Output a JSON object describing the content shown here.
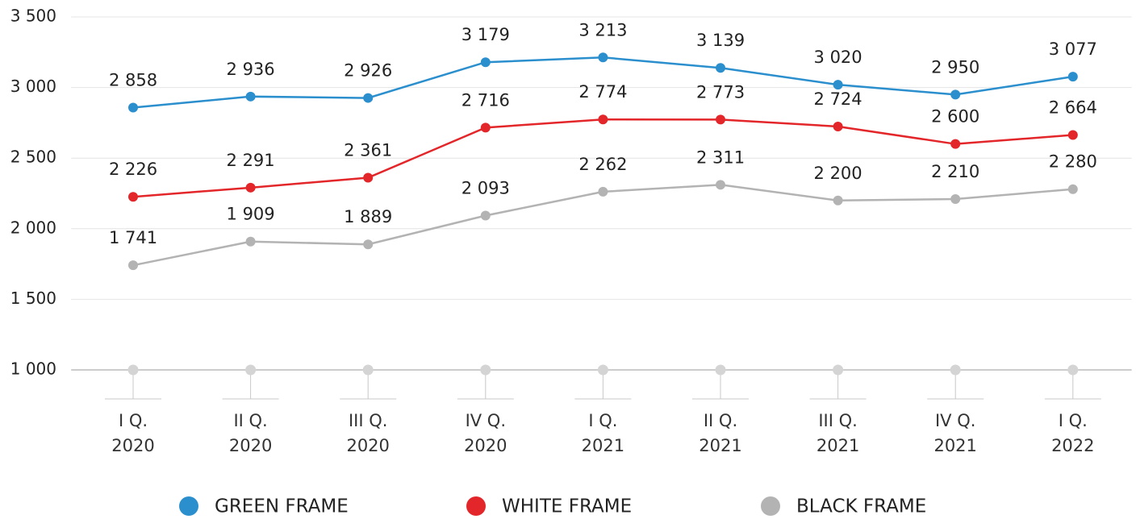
{
  "chart_data": {
    "type": "line",
    "categories": [
      "I Q. 2020",
      "II Q. 2020",
      "III Q. 2020",
      "IV Q. 2020",
      "I Q. 2021",
      "II Q. 2021",
      "III Q. 2021",
      "IV Q. 2021",
      "I Q. 2022"
    ],
    "series": [
      {
        "name": "GREEN FRAME",
        "color": "#2b8fce",
        "values": [
          2858,
          2936,
          2926,
          3179,
          3213,
          3139,
          3020,
          2950,
          3077
        ],
        "value_labels": [
          "2 858",
          "2 936",
          "2 926",
          "3 179",
          "3 213",
          "3 139",
          "3 020",
          "2 950",
          "3 077"
        ]
      },
      {
        "name": "WHITE FRAME",
        "color": "#e3262a",
        "values": [
          2226,
          2291,
          2361,
          2716,
          2774,
          2773,
          2724,
          2600,
          2664
        ],
        "value_labels": [
          "2 226",
          "2 291",
          "2 361",
          "2 716",
          "2 774",
          "2 773",
          "2 724",
          "2 600",
          "2 664"
        ]
      },
      {
        "name": "BLACK FRAME",
        "color": "#b3b3b3",
        "values": [
          1741,
          1909,
          1889,
          2093,
          2262,
          2311,
          2200,
          2210,
          2280
        ],
        "value_labels": [
          "1 741",
          "1 909",
          "1 889",
          "2 093",
          "2 262",
          "2 311",
          "2 200",
          "2 210",
          "2 280"
        ]
      }
    ],
    "ylim": [
      1000,
      3500
    ],
    "yticks": [
      {
        "value": 1000,
        "label": "1 000"
      },
      {
        "value": 1500,
        "label": "1 500"
      },
      {
        "value": 2000,
        "label": "2 000"
      },
      {
        "value": 2500,
        "label": "2 500"
      },
      {
        "value": 3000,
        "label": "3 000"
      },
      {
        "value": 3500,
        "label": "3 500"
      }
    ],
    "grid": true,
    "legend": "bottom"
  }
}
